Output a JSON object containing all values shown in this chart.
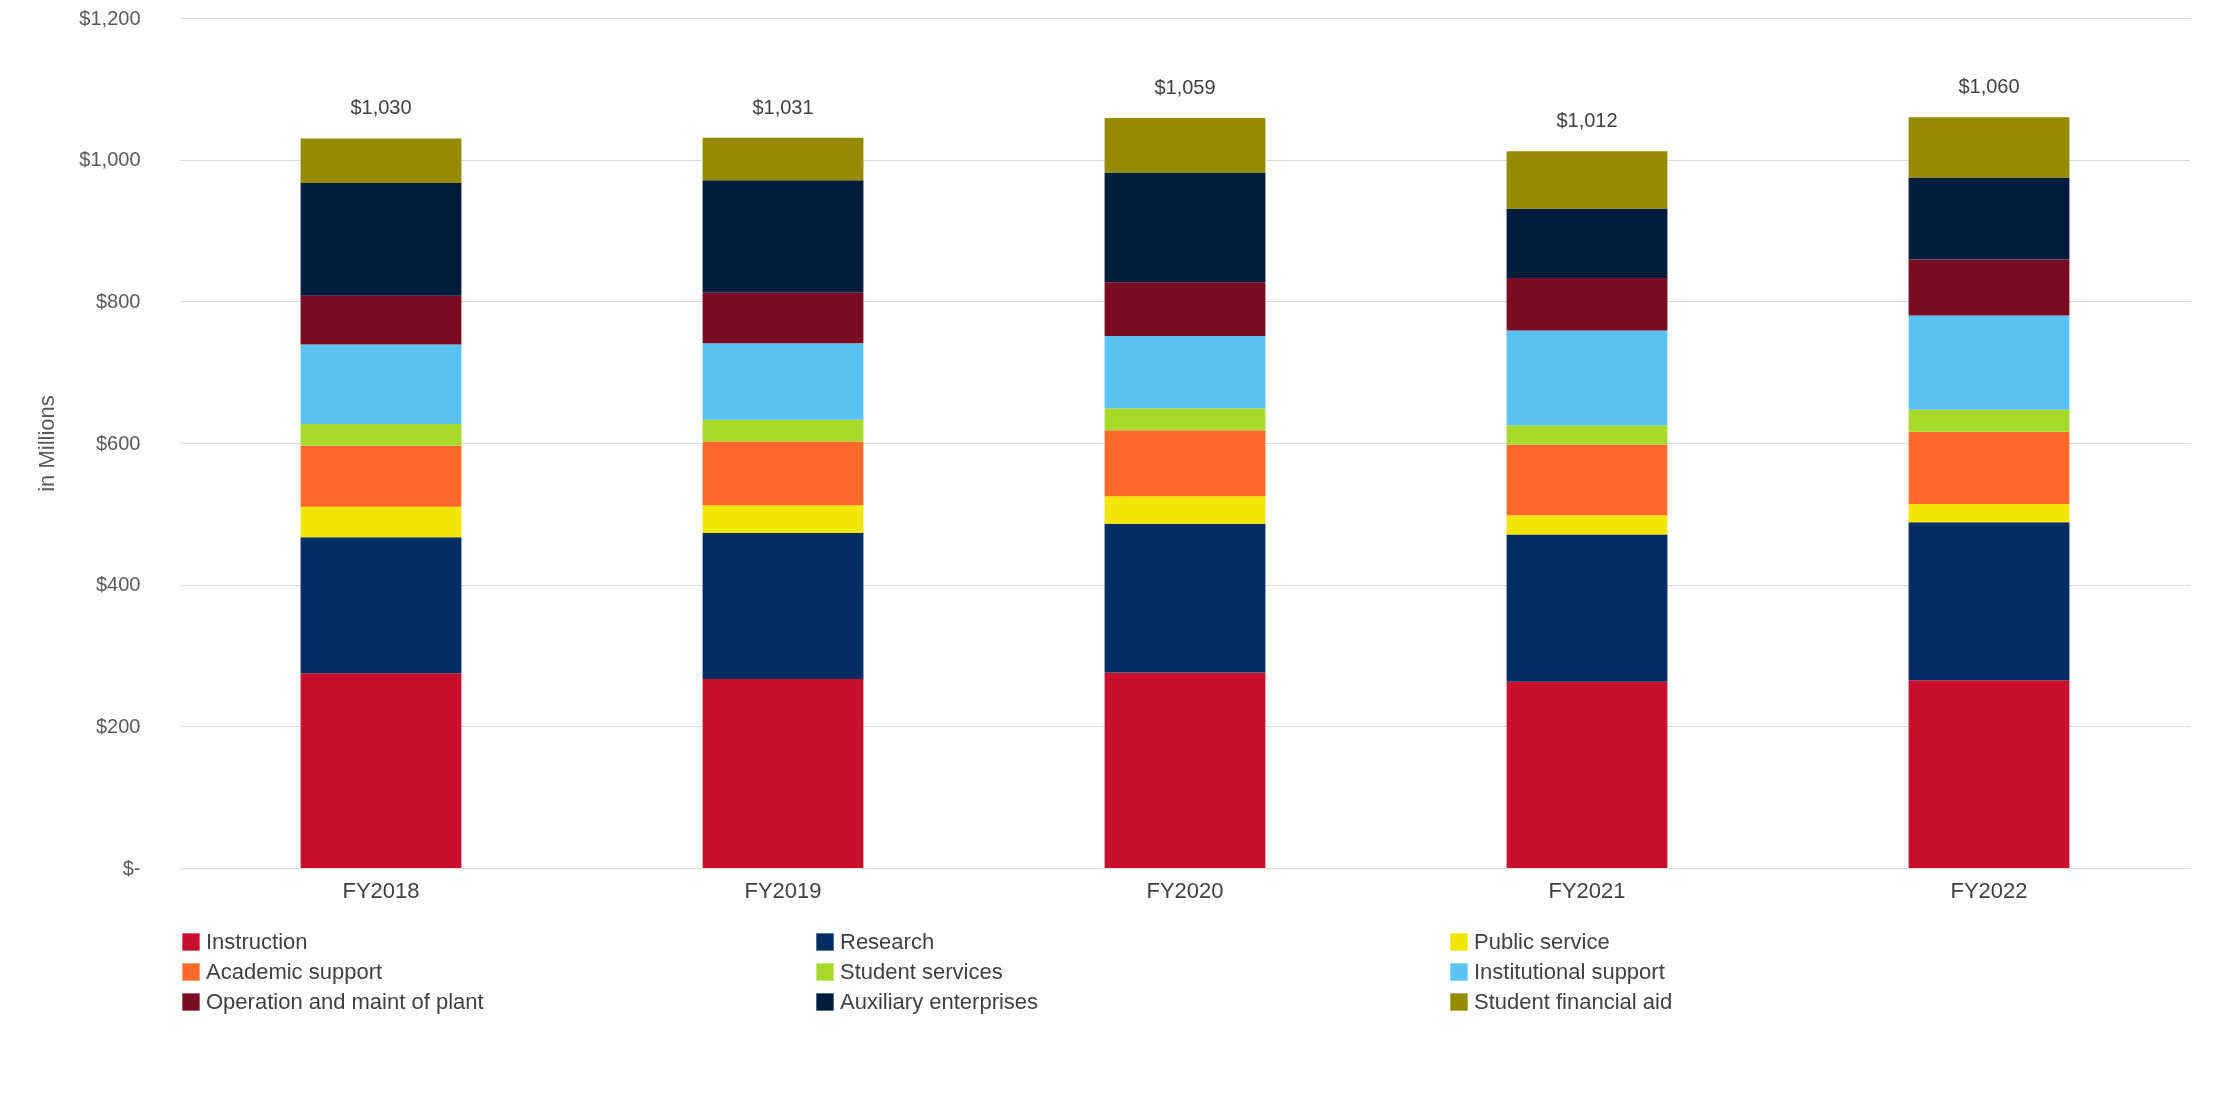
{
  "chart_data": {
    "type": "bar",
    "stacked": true,
    "ylabel": "in Millions",
    "categories": [
      "FY2018",
      "FY2019",
      "FY2020",
      "FY2021",
      "FY2022"
    ],
    "series": [
      {
        "name": "Instruction",
        "color": "#c8102e",
        "values": [
          275,
          267,
          276,
          263,
          265
        ]
      },
      {
        "name": "Research",
        "color": "#002d62",
        "values": [
          192,
          206,
          210,
          208,
          223
        ]
      },
      {
        "name": "Public service",
        "color": "#f2e600",
        "values": [
          43,
          39,
          39,
          27,
          26
        ]
      },
      {
        "name": "Academic support",
        "color": "#ff6a2a",
        "values": [
          86,
          90,
          93,
          100,
          102
        ]
      },
      {
        "name": "Student services",
        "color": "#a6d92a",
        "values": [
          31,
          31,
          31,
          27,
          31
        ]
      },
      {
        "name": "Institutional support",
        "color": "#5bc2f4",
        "values": [
          112,
          108,
          102,
          134,
          133
        ]
      },
      {
        "name": "Operation and maint of plant",
        "color": "#7a0c21",
        "values": [
          69,
          71,
          76,
          74,
          79
        ]
      },
      {
        "name": "Auxiliary enterprises",
        "color": "#001c3d",
        "values": [
          159,
          159,
          155,
          98,
          116
        ]
      },
      {
        "name": "Student financial aid",
        "color": "#948b00",
        "values": [
          63,
          60,
          77,
          81,
          85
        ]
      }
    ],
    "totals": [
      "$1,030",
      "$1,031",
      "$1,059",
      "$1,012",
      "$1,060"
    ],
    "ylim": [
      0,
      1200
    ],
    "yticks": [
      {
        "value": 0,
        "label": "$-"
      },
      {
        "value": 200,
        "label": "$200"
      },
      {
        "value": 400,
        "label": "$400"
      },
      {
        "value": 600,
        "label": "$600"
      },
      {
        "value": 800,
        "label": "$800"
      },
      {
        "value": 1000,
        "label": "$1,000"
      },
      {
        "value": 1200,
        "label": "$1,200"
      }
    ],
    "grid": "y",
    "legend": "bottom"
  }
}
